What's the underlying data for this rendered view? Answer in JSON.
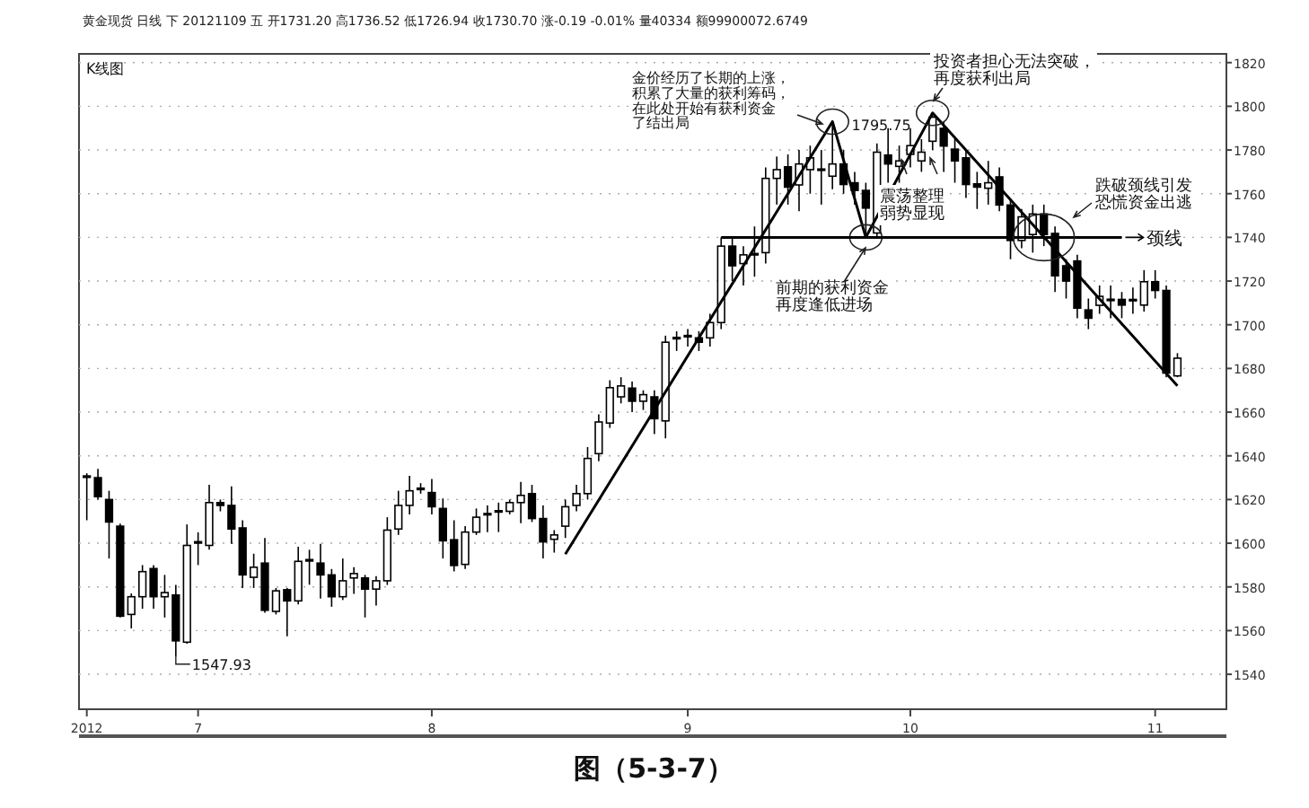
{
  "chart_data": {
    "type": "candlestick",
    "title": "黄金现货 日线 下 20121109 五 开1731.20 高1736.52 低1726.94 收1730.70 涨-0.19 -0.01% 量40334 额99900072.6749",
    "categories": [
      "2012",
      null,
      null,
      null,
      null,
      null,
      null,
      null,
      null,
      null,
      "7",
      null,
      null,
      null,
      null,
      null,
      null,
      null,
      null,
      null,
      null,
      null,
      null,
      null,
      null,
      null,
      null,
      null,
      null,
      null,
      null,
      "8",
      null,
      null,
      null,
      null,
      null,
      null,
      null,
      null,
      null,
      null,
      null,
      null,
      null,
      null,
      null,
      null,
      null,
      null,
      null,
      null,
      null,
      null,
      "9",
      null,
      null,
      null,
      null,
      null,
      null,
      null,
      null,
      null,
      null,
      null,
      null,
      null,
      null,
      null,
      null,
      null,
      null,
      null,
      "10",
      null,
      null,
      null,
      null,
      null,
      null,
      null,
      null,
      null,
      null,
      null,
      null,
      null,
      null,
      null,
      null,
      null,
      null,
      null,
      null,
      null,
      "11",
      null,
      null
    ],
    "series": [
      {
        "color": "#000000",
        "ohlc": [
          [
            1630.5,
            1632,
            1610.5,
            1630.8
          ],
          [
            1630,
            1634,
            1620,
            1621.3
          ],
          [
            1620,
            1624,
            1593,
            1609.7
          ],
          [
            1607.8,
            1609,
            1566,
            1566.6
          ],
          [
            1567.4,
            1577,
            1561,
            1575.5
          ],
          [
            1575.5,
            1590,
            1570,
            1587
          ],
          [
            1588.4,
            1590,
            1570,
            1575.5
          ],
          [
            1575.5,
            1585.5,
            1566,
            1577.4
          ],
          [
            1576.3,
            1580.9,
            1547.93,
            1555.3
          ],
          [
            1554.7,
            1608.6,
            1554,
            1599
          ],
          [
            1600.2,
            1605,
            1590,
            1600.7
          ],
          [
            1599,
            1626.7,
            1597,
            1618.6
          ],
          [
            1618.6,
            1620,
            1614.6,
            1617.3
          ],
          [
            1617.3,
            1626,
            1599.7,
            1606.5
          ],
          [
            1607,
            1610.5,
            1579.5,
            1585.5
          ],
          [
            1584.4,
            1595.2,
            1579.5,
            1589
          ],
          [
            1590.9,
            1602.4,
            1568.2,
            1569.3
          ],
          [
            1568.8,
            1579.5,
            1567.4,
            1578.2
          ],
          [
            1578.7,
            1579.5,
            1557.4,
            1573.6
          ],
          [
            1573.6,
            1598.4,
            1572,
            1591.7
          ],
          [
            1592.2,
            1597,
            1581,
            1592.5
          ],
          [
            1590.9,
            1599.7,
            1574.7,
            1585.5
          ],
          [
            1585.5,
            1588.2,
            1570.9,
            1575.5
          ],
          [
            1575.5,
            1593,
            1574,
            1582.8
          ],
          [
            1584.1,
            1589,
            1576.8,
            1586.1
          ],
          [
            1584.1,
            1585.5,
            1566,
            1579
          ],
          [
            1579,
            1584.9,
            1571.5,
            1582.8
          ],
          [
            1582.8,
            1611.9,
            1580.9,
            1606
          ],
          [
            1606.5,
            1624,
            1603.8,
            1617.3
          ],
          [
            1617.3,
            1630.8,
            1613.2,
            1624
          ],
          [
            1624.8,
            1627.5,
            1622.7,
            1625.2
          ],
          [
            1623.2,
            1629.4,
            1613.2,
            1616.7
          ],
          [
            1615.9,
            1620.5,
            1593,
            1601.1
          ],
          [
            1601.6,
            1610.5,
            1587.1,
            1589.8
          ],
          [
            1590.3,
            1607.8,
            1588.2,
            1605.1
          ],
          [
            1605.1,
            1615.9,
            1603.8,
            1611.9
          ],
          [
            1613.2,
            1617.3,
            1605.1,
            1613.6
          ],
          [
            1614.6,
            1618.6,
            1605.1,
            1614.9
          ],
          [
            1614.6,
            1620,
            1613.2,
            1618.6
          ],
          [
            1618.6,
            1628.1,
            1609.2,
            1621.9
          ],
          [
            1622.7,
            1626.7,
            1609.7,
            1611.3
          ],
          [
            1611.3,
            1617.3,
            1593,
            1600.6
          ],
          [
            1601.8,
            1606,
            1595.7,
            1603.8
          ],
          [
            1607.8,
            1620,
            1602.4,
            1616.7
          ],
          [
            1617.3,
            1626.7,
            1614.6,
            1622.7
          ],
          [
            1622.7,
            1644,
            1620,
            1638.8
          ],
          [
            1641,
            1659,
            1637.5,
            1655.5
          ],
          [
            1655,
            1674.6,
            1652.8,
            1671.2
          ],
          [
            1667,
            1676,
            1664,
            1672
          ],
          [
            1671,
            1674,
            1660,
            1665
          ],
          [
            1665,
            1670,
            1661,
            1668
          ],
          [
            1667,
            1670,
            1650,
            1657
          ],
          [
            1656,
            1695,
            1648,
            1692
          ],
          [
            1693.8,
            1697,
            1688,
            1694.2
          ],
          [
            1694.8,
            1698,
            1690,
            1695.1
          ],
          [
            1694,
            1697,
            1688,
            1692
          ],
          [
            1694,
            1705,
            1690,
            1701
          ],
          [
            1701,
            1740,
            1698,
            1736
          ],
          [
            1736,
            1740,
            1720,
            1727
          ],
          [
            1728,
            1736,
            1718,
            1732
          ],
          [
            1732.4,
            1745,
            1722,
            1732.6
          ],
          [
            1733,
            1772,
            1728,
            1767
          ],
          [
            1767,
            1777,
            1755,
            1771
          ],
          [
            1772.3,
            1778,
            1755,
            1763
          ],
          [
            1764,
            1780,
            1752,
            1773.6
          ],
          [
            1771,
            1782,
            1760,
            1776.4
          ],
          [
            1771,
            1780,
            1755,
            1771.3
          ],
          [
            1768,
            1793,
            1762,
            1773.6
          ],
          [
            1773.6,
            1780,
            1760,
            1764.2
          ],
          [
            1765,
            1770,
            1755,
            1761.5
          ],
          [
            1761.5,
            1765,
            1740,
            1753.4
          ],
          [
            1742,
            1783,
            1740,
            1779
          ],
          [
            1777.7,
            1790,
            1765,
            1773.6
          ],
          [
            1772.5,
            1782,
            1765,
            1775
          ],
          [
            1778,
            1790,
            1772,
            1782
          ],
          [
            1775,
            1785,
            1770,
            1779
          ],
          [
            1784,
            1795.75,
            1780,
            1795
          ],
          [
            1789.9,
            1793,
            1770,
            1781.8
          ],
          [
            1780.4,
            1785,
            1765,
            1775
          ],
          [
            1776.4,
            1780,
            1758,
            1764.2
          ],
          [
            1764.5,
            1770,
            1753,
            1763
          ],
          [
            1762.5,
            1775,
            1755,
            1765
          ],
          [
            1767.7,
            1772,
            1752,
            1754.8
          ],
          [
            1754.8,
            1757,
            1730,
            1738.6
          ],
          [
            1738.6,
            1753,
            1735,
            1749.4
          ],
          [
            1741.3,
            1755,
            1733,
            1750.7
          ],
          [
            1750.7,
            1755,
            1736,
            1741.3
          ],
          [
            1741.8,
            1745,
            1715,
            1722.4
          ],
          [
            1727,
            1730,
            1712,
            1720
          ],
          [
            1729.2,
            1732,
            1703,
            1707.6
          ],
          [
            1706.8,
            1712,
            1698,
            1703
          ],
          [
            1708.9,
            1718,
            1705,
            1713
          ],
          [
            1711.5,
            1718,
            1703,
            1711.7
          ],
          [
            1711.6,
            1715,
            1703,
            1709
          ],
          [
            1711.2,
            1717,
            1705,
            1711.6
          ],
          [
            1709,
            1725,
            1706,
            1719.7
          ],
          [
            1719.7,
            1725,
            1712,
            1715.7
          ],
          [
            1715.7,
            1718,
            1676,
            1677.9
          ],
          [
            1676.6,
            1687,
            1676,
            1684.7
          ]
        ]
      },
      {
        "type": "line",
        "color": "#000000",
        "values": [
          null,
          null,
          null,
          null,
          null,
          null,
          null,
          null,
          null,
          null,
          null,
          null,
          null,
          null,
          null,
          null,
          null,
          null,
          null,
          null,
          null,
          null,
          null,
          null,
          null,
          null,
          null,
          null,
          null,
          null,
          null,
          null,
          null,
          null,
          null,
          null,
          null,
          null,
          null,
          null,
          null,
          null,
          null,
          1595,
          null,
          null,
          null,
          null,
          null,
          null,
          null,
          null,
          null,
          null,
          null,
          null,
          null,
          null,
          null,
          null,
          null,
          null,
          null,
          null,
          null,
          null,
          null,
          1793,
          null,
          null,
          1740,
          null,
          null,
          null,
          null,
          null,
          1797,
          null,
          null,
          null,
          null,
          null,
          null,
          null,
          null,
          null,
          null,
          null,
          null,
          null,
          null,
          null,
          null,
          null,
          null,
          null,
          null,
          null,
          1672
        ]
      },
      {
        "type": "line",
        "name": "颈线",
        "color": "#000000",
        "values": [
          null,
          null,
          null,
          null,
          null,
          null,
          null,
          null,
          null,
          null,
          null,
          null,
          null,
          null,
          null,
          null,
          null,
          null,
          null,
          null,
          null,
          null,
          null,
          null,
          null,
          null,
          null,
          null,
          null,
          null,
          null,
          null,
          null,
          null,
          null,
          null,
          null,
          null,
          null,
          null,
          null,
          null,
          null,
          null,
          null,
          null,
          null,
          null,
          null,
          null,
          null,
          null,
          null,
          null,
          null,
          null,
          null,
          1740,
          null,
          null,
          null,
          null,
          null,
          null,
          null,
          null,
          null,
          null,
          null,
          null,
          null,
          null,
          null,
          null,
          null,
          null,
          null,
          null,
          null,
          null,
          null,
          null,
          null,
          null,
          null,
          null,
          null,
          null,
          null,
          null,
          null,
          null,
          null,
          1740,
          null,
          null,
          null,
          null,
          null
        ]
      }
    ],
    "ylim": [
      1524,
      1824
    ],
    "yticks": [
      1540,
      1560,
      1580,
      1600,
      1620,
      1640,
      1660,
      1680,
      1700,
      1720,
      1740,
      1760,
      1780,
      1800,
      1820
    ],
    "grid": "y",
    "legend": "right",
    "annotations": [
      "1547.93",
      "1795.75",
      "金价经历了长期的上涨，积累了大量的获利筹码，在此处开始有获利资金了结出局",
      "前期的获利资金再度逢低进场",
      "投资者担心无法突破，再度获利出局",
      "震荡整理弱势显现",
      "跌破颈线引发恐慌资金出逃",
      "K线图",
      "图（5-3-7）"
    ]
  }
}
